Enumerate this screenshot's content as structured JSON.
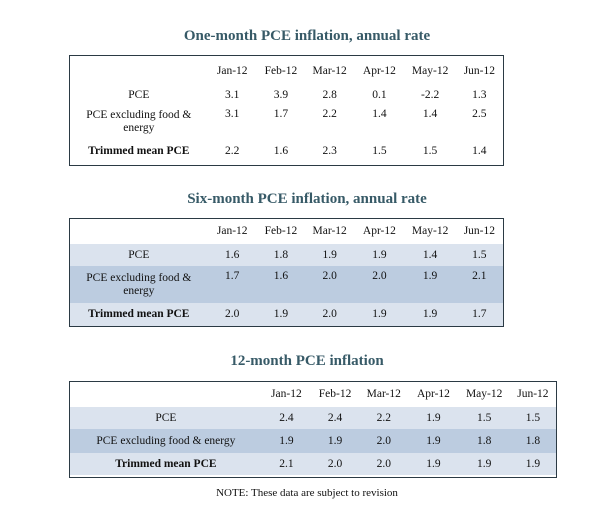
{
  "columns": [
    "Jan-12",
    "Feb-12",
    "Mar-12",
    "Apr-12",
    "May-12",
    "Jun-12"
  ],
  "tables": [
    {
      "title": "One-month PCE inflation, annual rate",
      "rows": [
        {
          "label": "PCE",
          "values": [
            "3.1",
            "3.9",
            "2.8",
            "0.1",
            "-2.2",
            "1.3"
          ]
        },
        {
          "label": "PCE excluding food & energy",
          "values": [
            "3.1",
            "1.7",
            "2.2",
            "1.4",
            "1.4",
            "2.5"
          ]
        },
        {
          "label": "Trimmed mean PCE",
          "values": [
            "2.2",
            "1.6",
            "2.3",
            "1.5",
            "1.5",
            "1.4"
          ]
        }
      ]
    },
    {
      "title": "Six-month PCE inflation, annual rate",
      "rows": [
        {
          "label": "PCE",
          "values": [
            "1.6",
            "1.8",
            "1.9",
            "1.9",
            "1.4",
            "1.5"
          ]
        },
        {
          "label": "PCE excluding food & energy",
          "values": [
            "1.7",
            "1.6",
            "2.0",
            "2.0",
            "1.9",
            "2.1"
          ]
        },
        {
          "label": "Trimmed mean PCE",
          "values": [
            "2.0",
            "1.9",
            "2.0",
            "1.9",
            "1.9",
            "1.7"
          ]
        }
      ]
    },
    {
      "title": "12-month PCE inflation",
      "rows": [
        {
          "label": "PCE",
          "values": [
            "2.4",
            "2.4",
            "2.2",
            "1.9",
            "1.5",
            "1.5"
          ]
        },
        {
          "label": "PCE excluding food & energy",
          "values": [
            "1.9",
            "1.9",
            "2.0",
            "1.9",
            "1.8",
            "1.8"
          ]
        },
        {
          "label": "Trimmed mean PCE",
          "values": [
            "2.1",
            "2.0",
            "2.0",
            "1.9",
            "1.9",
            "1.9"
          ]
        }
      ]
    }
  ],
  "note": "NOTE: These data are subject to revision",
  "colors": {
    "title": "#375a67",
    "border": "#2b3a44",
    "shade_light": "#dbe3ee",
    "shade_dark": "#bccce0"
  }
}
